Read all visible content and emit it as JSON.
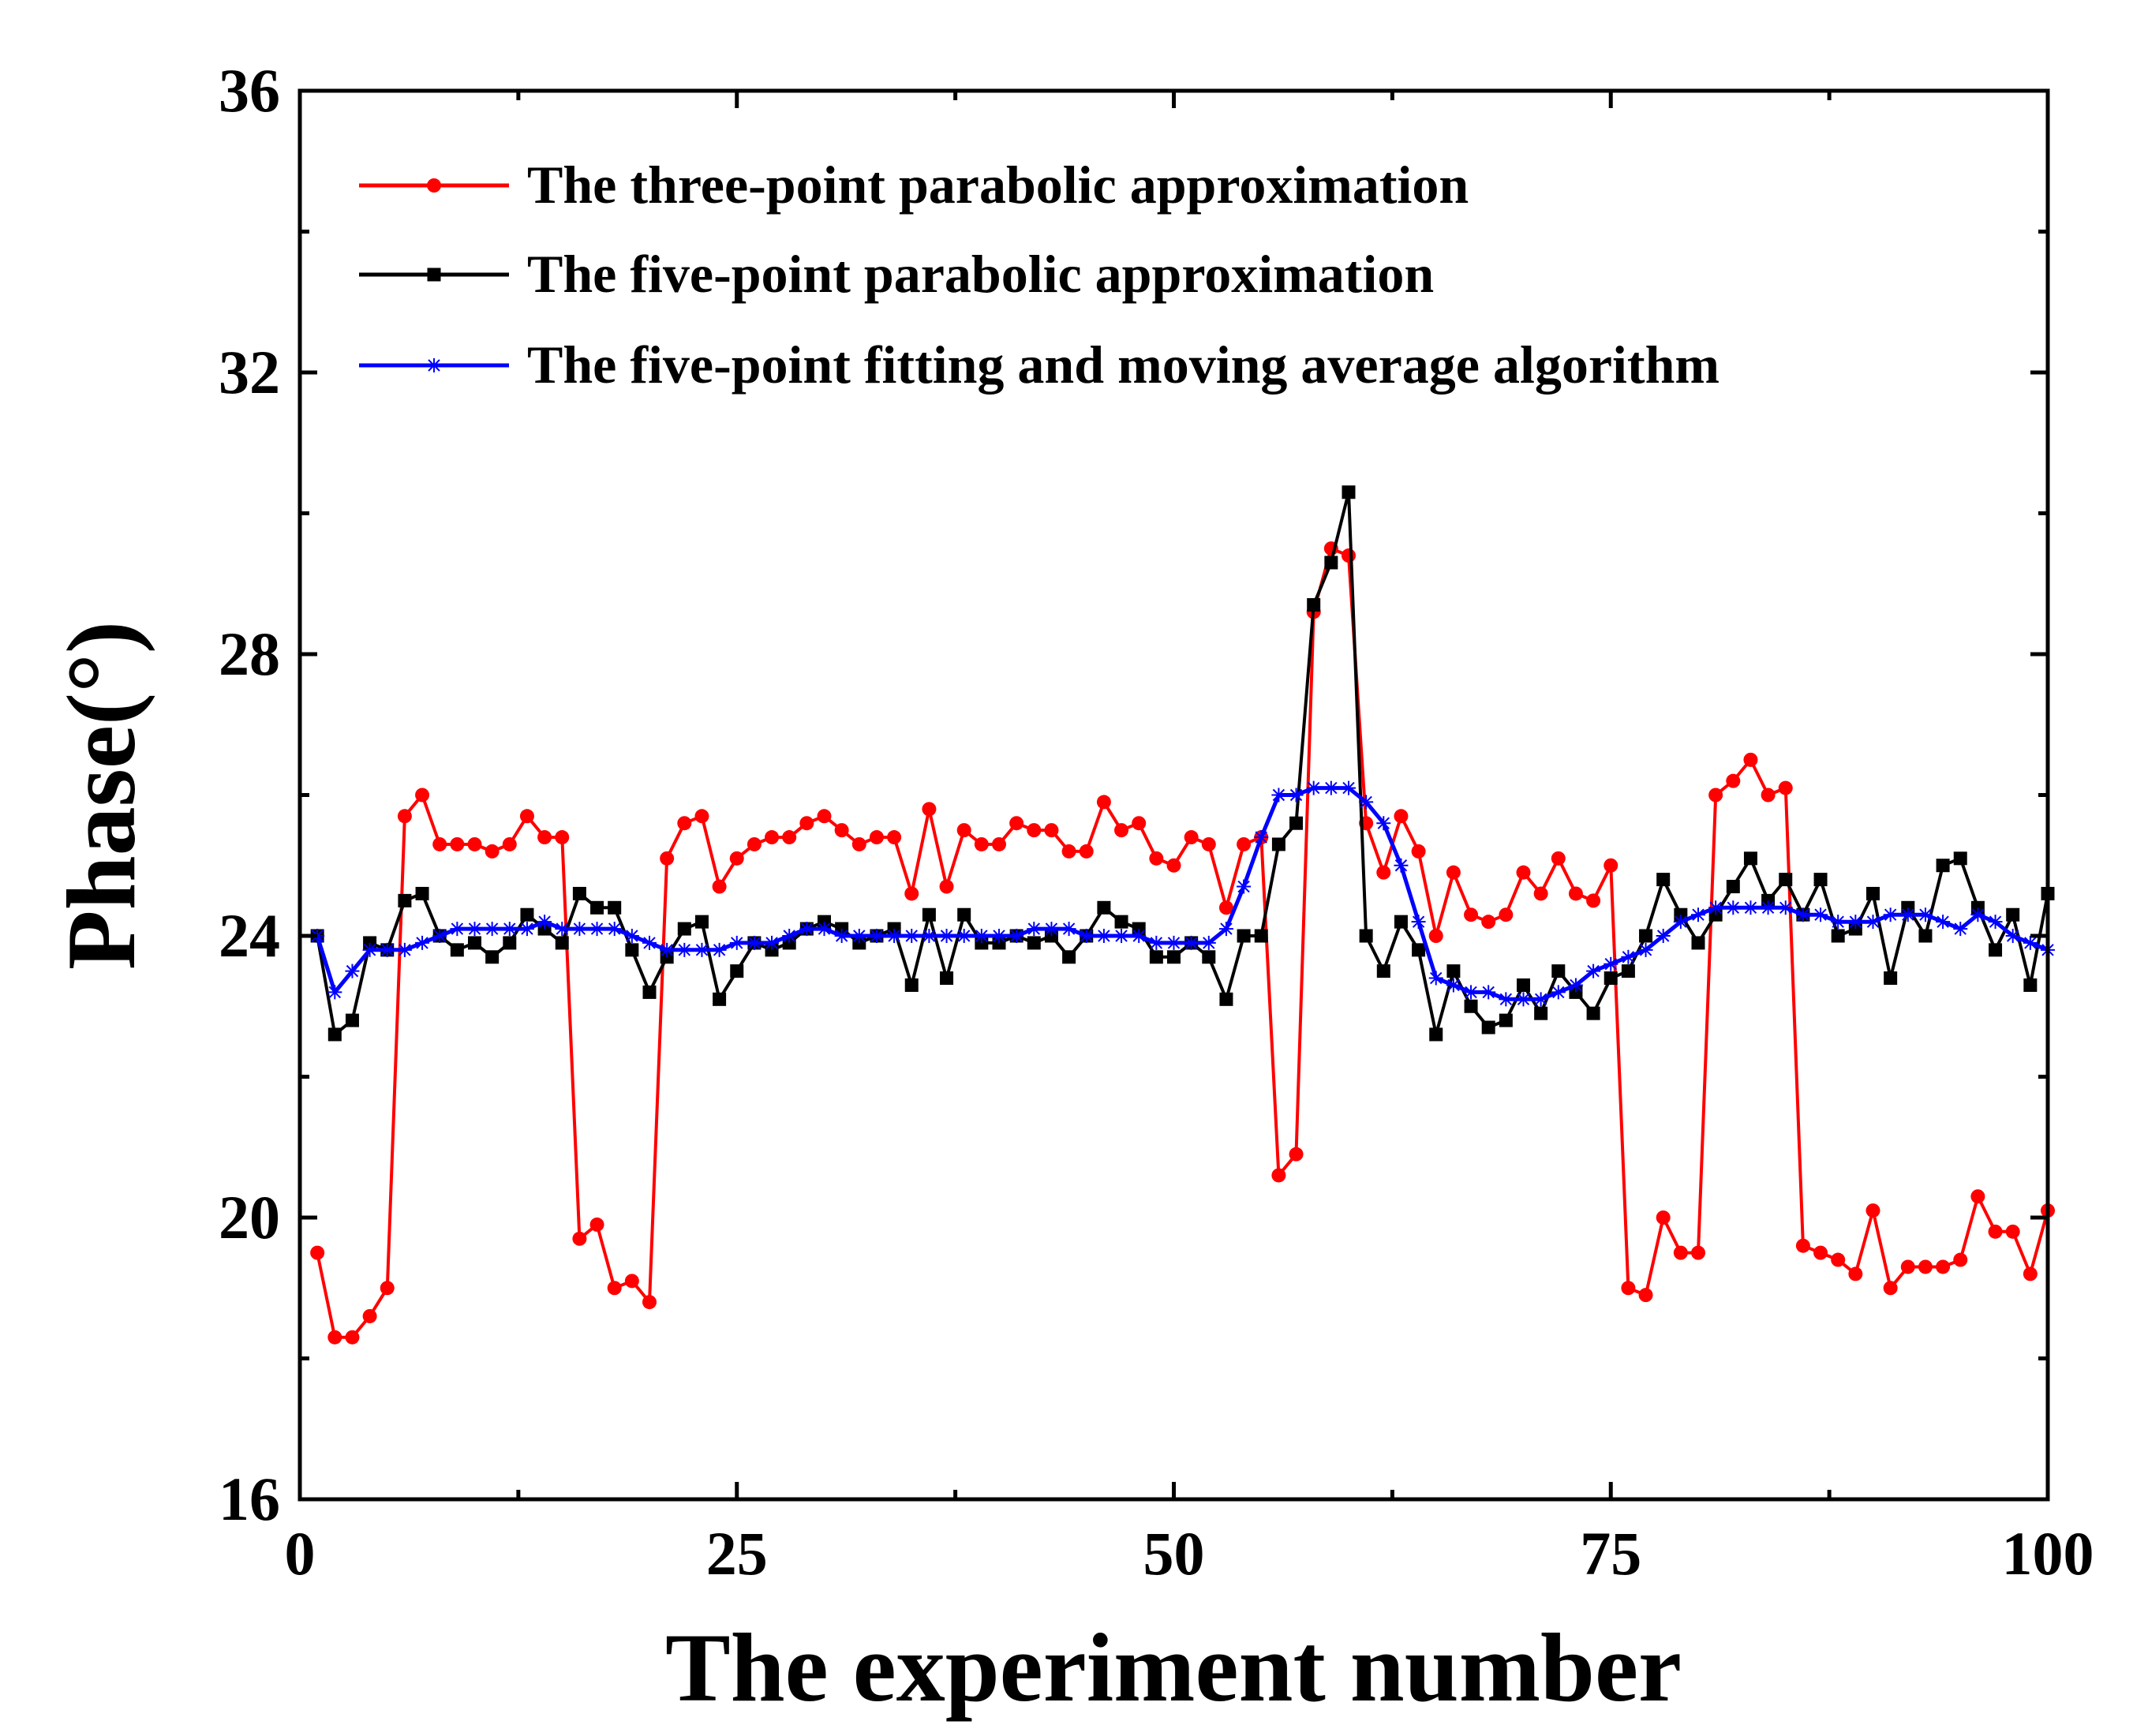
{
  "chart_data": {
    "type": "line",
    "title": "",
    "xlabel": "The experiment number",
    "ylabel": "Phase(°)",
    "xlim": [
      0,
      100
    ],
    "ylim": [
      16,
      36
    ],
    "xticks": [
      0,
      25,
      50,
      75,
      100
    ],
    "yticks": [
      16,
      20,
      24,
      28,
      32,
      36
    ],
    "grid": false,
    "legend_position": "top-left",
    "x": [
      1,
      2,
      3,
      4,
      5,
      6,
      7,
      8,
      9,
      10,
      11,
      12,
      13,
      14,
      15,
      16,
      17,
      18,
      19,
      20,
      21,
      22,
      23,
      24,
      25,
      26,
      27,
      28,
      29,
      30,
      31,
      32,
      33,
      34,
      35,
      36,
      37,
      38,
      39,
      40,
      41,
      42,
      43,
      44,
      45,
      46,
      47,
      48,
      49,
      50,
      51,
      52,
      53,
      54,
      55,
      56,
      57,
      58,
      59,
      60,
      61,
      62,
      63,
      64,
      65,
      66,
      67,
      68,
      69,
      70,
      71,
      72,
      73,
      74,
      75,
      76,
      77,
      78,
      79,
      80,
      81,
      82,
      83,
      84,
      85,
      86,
      87,
      88,
      89,
      90,
      91,
      92,
      93,
      94,
      95,
      96,
      97,
      98,
      99,
      100
    ],
    "series": [
      {
        "name": "The three-point parabolic approximation",
        "color": "#ff0000",
        "marker": "circle",
        "values": [
          19.5,
          18.3,
          18.3,
          18.6,
          19.0,
          25.7,
          26.0,
          25.3,
          25.3,
          25.3,
          25.2,
          25.3,
          25.7,
          25.4,
          25.4,
          19.7,
          19.9,
          19.0,
          19.1,
          18.8,
          25.1,
          25.6,
          25.7,
          24.7,
          25.1,
          25.3,
          25.4,
          25.4,
          25.6,
          25.7,
          25.5,
          25.3,
          25.4,
          25.4,
          24.6,
          25.8,
          24.7,
          25.5,
          25.3,
          25.3,
          25.6,
          25.5,
          25.5,
          25.2,
          25.2,
          25.9,
          25.5,
          25.6,
          25.1,
          25.0,
          25.4,
          25.3,
          24.4,
          25.3,
          25.4,
          20.6,
          20.9,
          28.6,
          29.5,
          29.4,
          25.6,
          24.9,
          25.7,
          25.2,
          24.0,
          24.9,
          24.3,
          24.2,
          24.3,
          24.9,
          24.6,
          25.1,
          24.6,
          24.5,
          25.0,
          19.0,
          18.9,
          20.0,
          19.5,
          19.5,
          26.0,
          26.2,
          26.5,
          26.0,
          26.1,
          19.6,
          19.5,
          19.4,
          19.2,
          20.1,
          19.0,
          19.3,
          19.3,
          19.3,
          19.4,
          20.3,
          19.8,
          19.8,
          19.2,
          20.1
        ]
      },
      {
        "name": "The five-point parabolic approximation",
        "color": "#000000",
        "marker": "square",
        "values": [
          24.0,
          22.6,
          22.8,
          23.9,
          23.8,
          24.5,
          24.6,
          24.0,
          23.8,
          23.9,
          23.7,
          23.9,
          24.3,
          24.1,
          23.9,
          24.6,
          24.4,
          24.4,
          23.8,
          23.2,
          23.7,
          24.1,
          24.2,
          23.1,
          23.5,
          23.9,
          23.8,
          23.9,
          24.1,
          24.2,
          24.1,
          23.9,
          24.0,
          24.1,
          23.3,
          24.3,
          23.4,
          24.3,
          23.9,
          23.9,
          24.0,
          23.9,
          24.0,
          23.7,
          24.0,
          24.4,
          24.2,
          24.1,
          23.7,
          23.7,
          23.9,
          23.7,
          23.1,
          24.0,
          24.0,
          25.3,
          25.6,
          28.7,
          29.3,
          30.3,
          24.0,
          23.5,
          24.2,
          23.8,
          22.6,
          23.5,
          23.0,
          22.7,
          22.8,
          23.3,
          22.9,
          23.5,
          23.2,
          22.9,
          23.4,
          23.5,
          24.0,
          24.8,
          24.3,
          23.9,
          24.3,
          24.7,
          25.1,
          24.5,
          24.8,
          24.3,
          24.8,
          24.0,
          24.1,
          24.6,
          23.4,
          24.4,
          24.0,
          25.0,
          25.1,
          24.4,
          23.8,
          24.3,
          23.3,
          24.6
        ]
      },
      {
        "name": "The five-point fitting and moving average algorithm",
        "color": "#0000ff",
        "marker": "star",
        "values": [
          24.0,
          23.2,
          23.5,
          23.8,
          23.8,
          23.8,
          23.9,
          24.0,
          24.1,
          24.1,
          24.1,
          24.1,
          24.1,
          24.2,
          24.1,
          24.1,
          24.1,
          24.1,
          24.0,
          23.9,
          23.8,
          23.8,
          23.8,
          23.8,
          23.9,
          23.9,
          23.9,
          24.0,
          24.1,
          24.1,
          24.0,
          24.0,
          24.0,
          24.0,
          24.0,
          24.0,
          24.0,
          24.0,
          24.0,
          24.0,
          24.0,
          24.1,
          24.1,
          24.1,
          24.0,
          24.0,
          24.0,
          24.0,
          23.9,
          23.9,
          23.9,
          23.9,
          24.1,
          24.7,
          25.4,
          26.0,
          26.0,
          26.1,
          26.1,
          26.1,
          25.9,
          25.6,
          25.0,
          24.2,
          23.4,
          23.3,
          23.2,
          23.2,
          23.1,
          23.1,
          23.1,
          23.2,
          23.3,
          23.5,
          23.6,
          23.7,
          23.8,
          24.0,
          24.2,
          24.3,
          24.4,
          24.4,
          24.4,
          24.4,
          24.4,
          24.3,
          24.3,
          24.2,
          24.2,
          24.2,
          24.3,
          24.3,
          24.3,
          24.2,
          24.1,
          24.3,
          24.2,
          24.0,
          23.9,
          23.8
        ]
      }
    ]
  }
}
